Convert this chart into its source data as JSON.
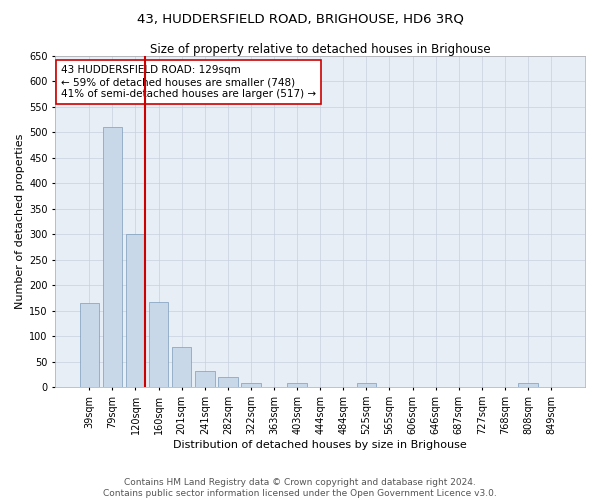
{
  "title": "43, HUDDERSFIELD ROAD, BRIGHOUSE, HD6 3RQ",
  "subtitle": "Size of property relative to detached houses in Brighouse",
  "xlabel": "Distribution of detached houses by size in Brighouse",
  "ylabel": "Number of detached properties",
  "bar_color": "#c8d8e8",
  "bar_edge_color": "#7a9cba",
  "background_color": "#ffffff",
  "plot_bg_color": "#e8eef6",
  "grid_color": "#c8d0e0",
  "categories": [
    "39sqm",
    "79sqm",
    "120sqm",
    "160sqm",
    "201sqm",
    "241sqm",
    "282sqm",
    "322sqm",
    "363sqm",
    "403sqm",
    "444sqm",
    "484sqm",
    "525sqm",
    "565sqm",
    "606sqm",
    "646sqm",
    "687sqm",
    "727sqm",
    "768sqm",
    "808sqm",
    "849sqm"
  ],
  "values": [
    165,
    510,
    300,
    168,
    78,
    32,
    20,
    8,
    0,
    8,
    0,
    0,
    8,
    0,
    0,
    0,
    0,
    0,
    0,
    8,
    0
  ],
  "property_line_x": 2,
  "property_line_color": "#cc0000",
  "annotation_line1": "43 HUDDERSFIELD ROAD: 129sqm",
  "annotation_line2": "← 59% of detached houses are smaller (748)",
  "annotation_line3": "41% of semi-detached houses are larger (517) →",
  "annotation_box_color": "#ffffff",
  "annotation_box_edge_color": "#cc0000",
  "ylim": [
    0,
    650
  ],
  "yticks": [
    0,
    50,
    100,
    150,
    200,
    250,
    300,
    350,
    400,
    450,
    500,
    550,
    600,
    650
  ],
  "footer_line1": "Contains HM Land Registry data © Crown copyright and database right 2024.",
  "footer_line2": "Contains public sector information licensed under the Open Government Licence v3.0.",
  "title_fontsize": 9.5,
  "subtitle_fontsize": 8.5,
  "annotation_fontsize": 7.5,
  "axis_label_fontsize": 8,
  "tick_fontsize": 7,
  "footer_fontsize": 6.5
}
